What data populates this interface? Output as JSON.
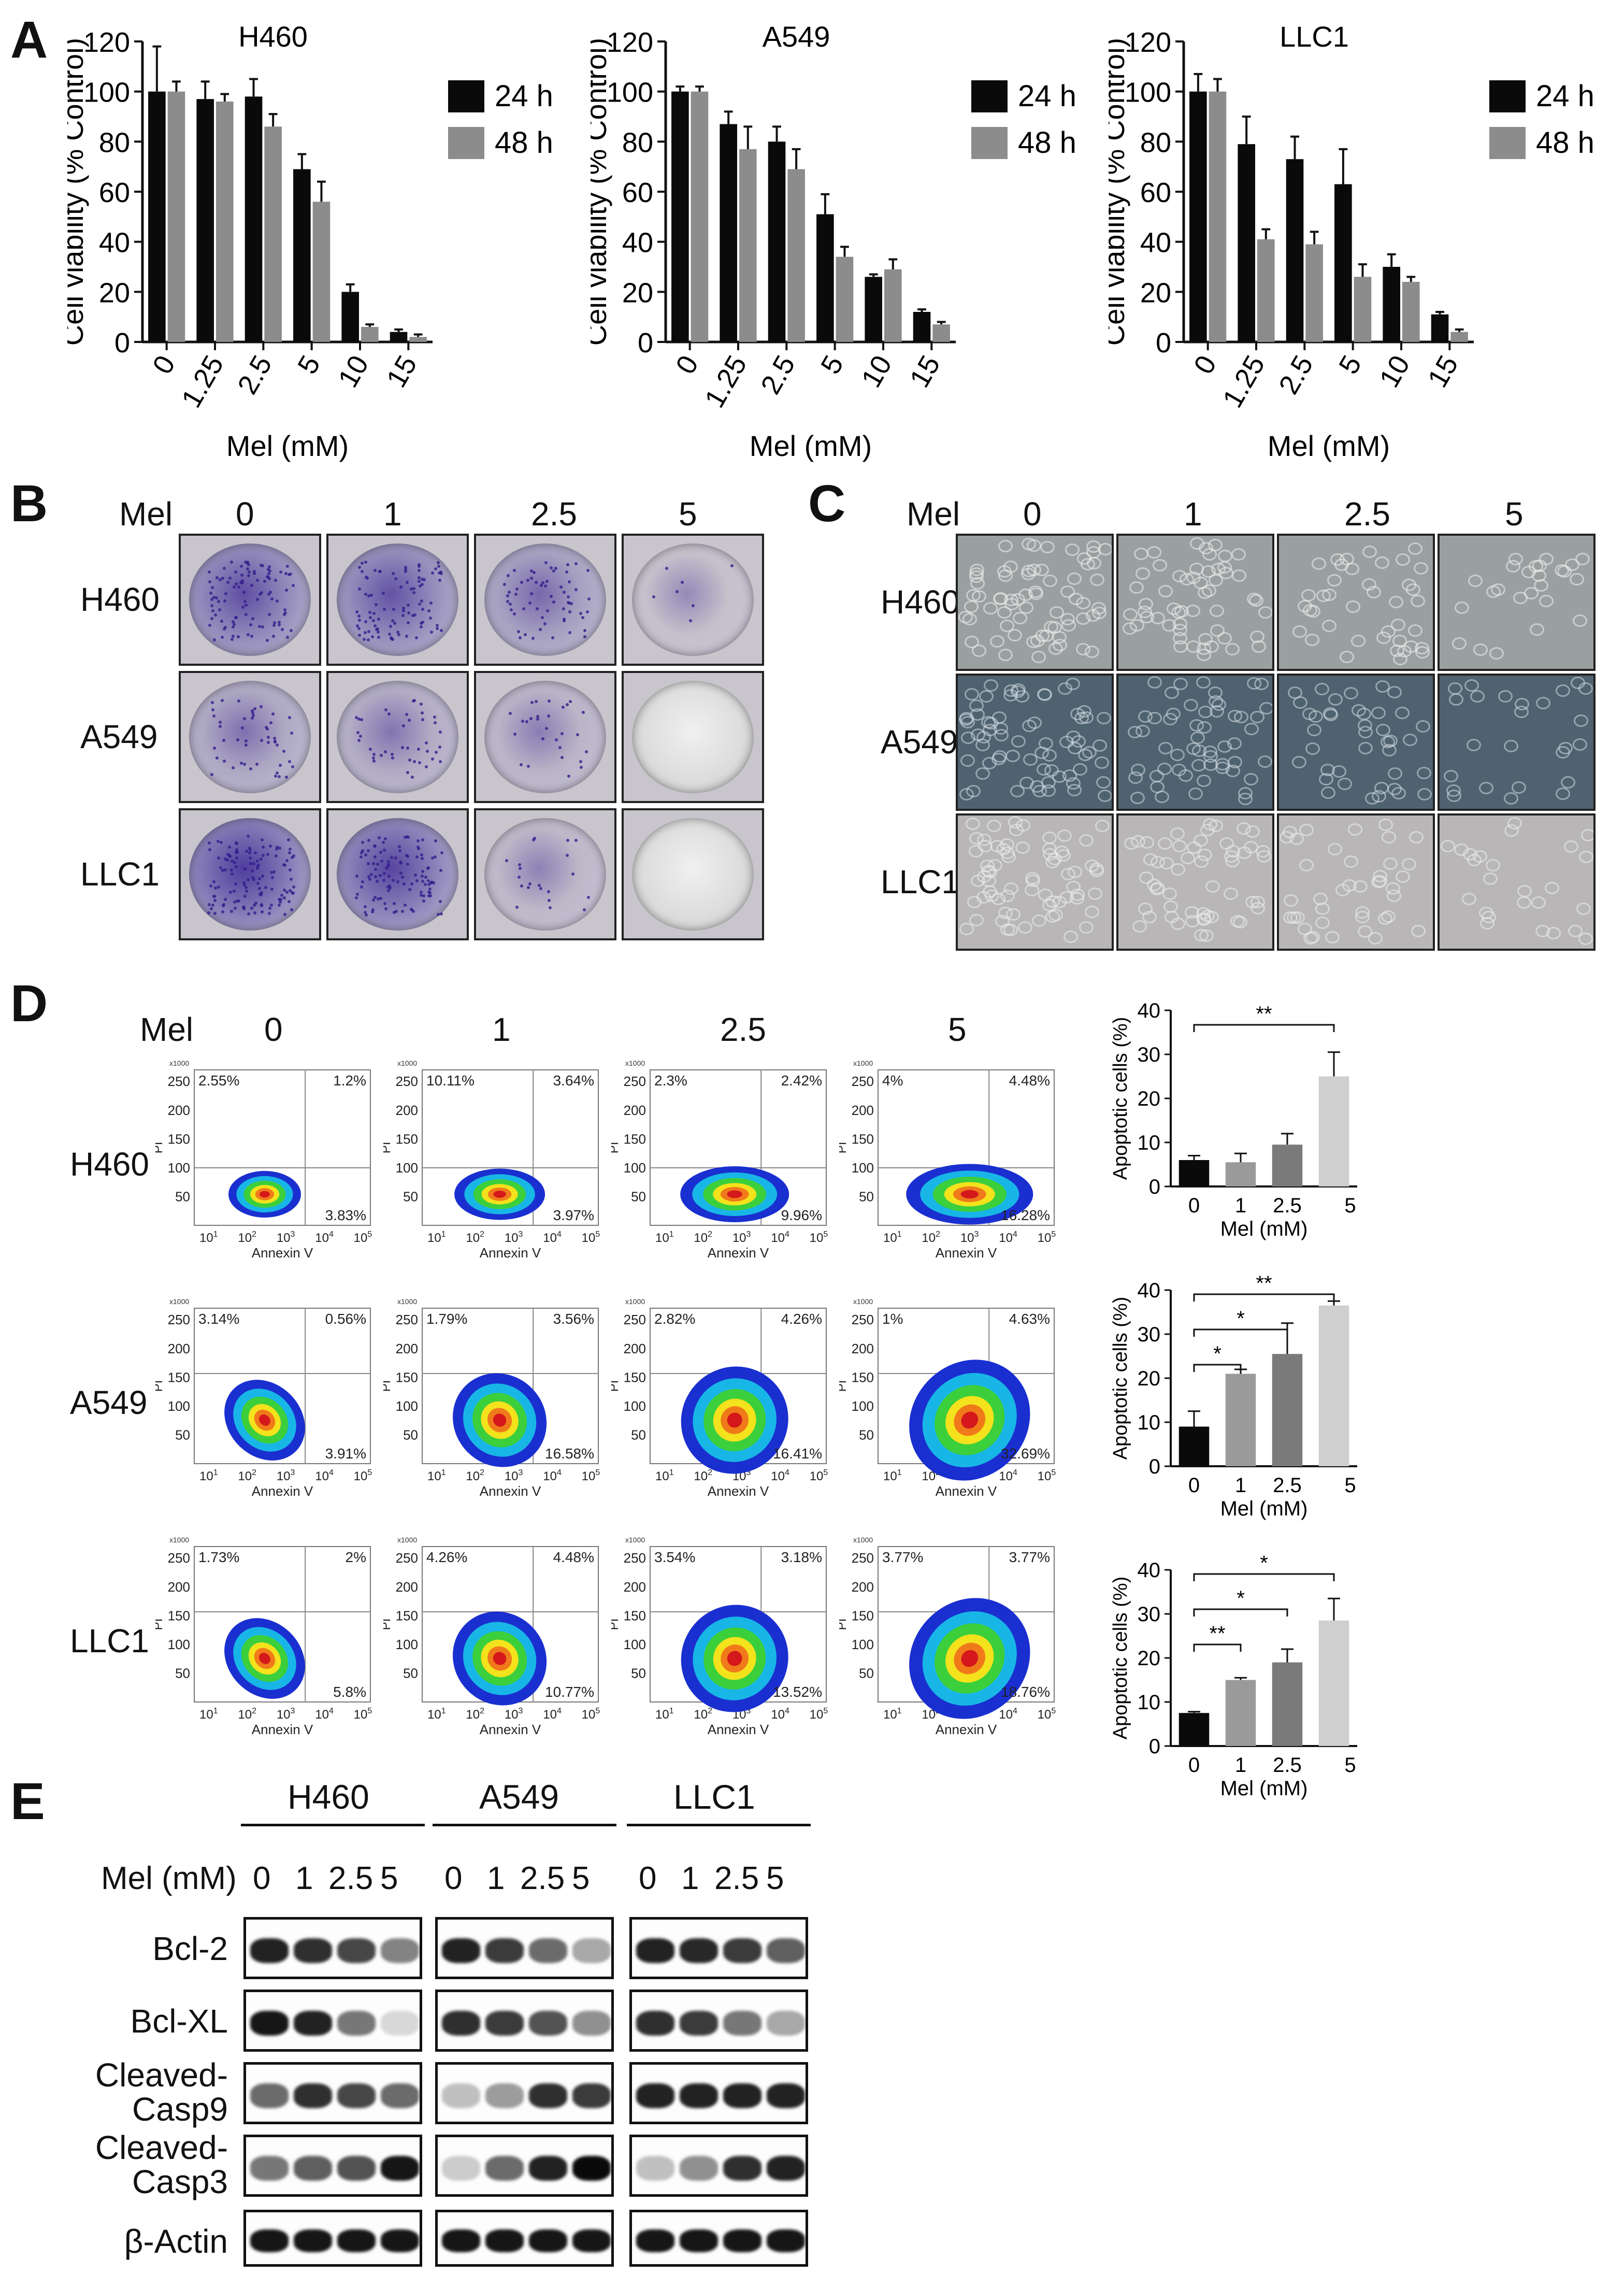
{
  "panel_letters": {
    "a": "A",
    "b": "B",
    "c": "C",
    "d": "D",
    "e": "E"
  },
  "chart_data": [
    {
      "id": "viability-h460",
      "type": "bar",
      "title": "H460",
      "ylabel": "Cell viability (% Control)",
      "xlabel": "Mel (mM)",
      "categories": [
        "0",
        "1.25",
        "2.5",
        "5",
        "10",
        "15"
      ],
      "ylim": [
        0,
        120
      ],
      "yticks": [
        0,
        20,
        40,
        60,
        80,
        100,
        120
      ],
      "series": [
        {
          "name": "24 h",
          "color": "#0a0a0a",
          "values": [
            100,
            97,
            98,
            69,
            20,
            4
          ],
          "errors": [
            18,
            7,
            7,
            6,
            3,
            1
          ]
        },
        {
          "name": "48 h",
          "color": "#8c8c8c",
          "values": [
            100,
            96,
            86,
            56,
            6,
            2
          ],
          "errors": [
            4,
            3,
            5,
            8,
            1,
            1
          ]
        }
      ]
    },
    {
      "id": "viability-a549",
      "type": "bar",
      "title": "A549",
      "ylabel": "Cell viability (% Control)",
      "xlabel": "Mel (mM)",
      "categories": [
        "0",
        "1.25",
        "2.5",
        "5",
        "10",
        "15"
      ],
      "ylim": [
        0,
        120
      ],
      "yticks": [
        0,
        20,
        40,
        60,
        80,
        100,
        120
      ],
      "series": [
        {
          "name": "24 h",
          "color": "#0a0a0a",
          "values": [
            100,
            87,
            80,
            51,
            26,
            12
          ],
          "errors": [
            2,
            5,
            6,
            8,
            1,
            1
          ]
        },
        {
          "name": "48 h",
          "color": "#8c8c8c",
          "values": [
            100,
            77,
            69,
            34,
            29,
            7
          ],
          "errors": [
            2,
            9,
            8,
            4,
            4,
            1
          ]
        }
      ]
    },
    {
      "id": "viability-llc1",
      "type": "bar",
      "title": "LLC1",
      "ylabel": "Cell viability (% Control)",
      "xlabel": "Mel (mM)",
      "categories": [
        "0",
        "1.25",
        "2.5",
        "5",
        "10",
        "15"
      ],
      "ylim": [
        0,
        120
      ],
      "yticks": [
        0,
        20,
        40,
        60,
        80,
        100,
        120
      ],
      "series": [
        {
          "name": "24 h",
          "color": "#0a0a0a",
          "values": [
            100,
            79,
            73,
            63,
            30,
            11
          ],
          "errors": [
            7,
            11,
            9,
            14,
            5,
            1
          ]
        },
        {
          "name": "48 h",
          "color": "#8c8c8c",
          "values": [
            100,
            41,
            39,
            26,
            24,
            4
          ],
          "errors": [
            5,
            4,
            5,
            5,
            2,
            1
          ]
        }
      ]
    },
    {
      "id": "apoptosis-h460",
      "type": "bar",
      "ylabel": "Apoptotic cells (%)",
      "xlabel": "Mel (mM)",
      "categories": [
        "0",
        "1",
        "2.5",
        "5"
      ],
      "ylim": [
        0,
        40
      ],
      "yticks": [
        0,
        10,
        20,
        30,
        40
      ],
      "series": [
        {
          "values": [
            6,
            5.5,
            9.5,
            25
          ],
          "errors": [
            1,
            2,
            2.5,
            5.5
          ],
          "colors": [
            "#0a0a0a",
            "#9a9a9a",
            "#7a7a7a",
            "#cfcfcf"
          ]
        }
      ],
      "significance": [
        {
          "from": 0,
          "to": 3,
          "label": "**"
        }
      ]
    },
    {
      "id": "apoptosis-a549",
      "type": "bar",
      "ylabel": "Apoptotic cells (%)",
      "xlabel": "Mel (mM)",
      "categories": [
        "0",
        "1",
        "2.5",
        "5"
      ],
      "ylim": [
        0,
        40
      ],
      "yticks": [
        0,
        10,
        20,
        30,
        40
      ],
      "series": [
        {
          "values": [
            9,
            21,
            25.5,
            36.5
          ],
          "errors": [
            3.5,
            1,
            7,
            1
          ],
          "colors": [
            "#0a0a0a",
            "#9a9a9a",
            "#7a7a7a",
            "#cfcfcf"
          ]
        }
      ],
      "significance": [
        {
          "from": 0,
          "to": 1,
          "label": "*"
        },
        {
          "from": 0,
          "to": 2,
          "label": "*"
        },
        {
          "from": 0,
          "to": 3,
          "label": "**"
        }
      ]
    },
    {
      "id": "apoptosis-llc1",
      "type": "bar",
      "ylabel": "Apoptotic cells (%)",
      "xlabel": "Mel (mM)",
      "categories": [
        "0",
        "1",
        "2.5",
        "5"
      ],
      "ylim": [
        0,
        40
      ],
      "yticks": [
        0,
        10,
        20,
        30,
        40
      ],
      "series": [
        {
          "values": [
            7.5,
            15,
            19,
            28.5
          ],
          "errors": [
            0.3,
            0.5,
            3,
            5
          ],
          "colors": [
            "#0a0a0a",
            "#9a9a9a",
            "#7a7a7a",
            "#cfcfcf"
          ]
        }
      ],
      "significance": [
        {
          "from": 0,
          "to": 1,
          "label": "**"
        },
        {
          "from": 0,
          "to": 2,
          "label": "*"
        },
        {
          "from": 0,
          "to": 3,
          "label": "*"
        }
      ]
    }
  ],
  "panel_b": {
    "mel_label": "Mel",
    "doses": [
      "0",
      "1",
      "2.5",
      "5"
    ],
    "rows": [
      "H460",
      "A549",
      "LLC1"
    ],
    "stain_color": "#5a4fa8",
    "density": [
      [
        0.75,
        0.7,
        0.45,
        0.05
      ],
      [
        0.35,
        0.3,
        0.2,
        0.0
      ],
      [
        0.95,
        0.85,
        0.15,
        0.0
      ]
    ]
  },
  "panel_c": {
    "mel_label": "Mel",
    "doses": [
      "0",
      "1",
      "2.5",
      "5"
    ],
    "rows": [
      "H460",
      "A549",
      "LLC1"
    ]
  },
  "panel_d": {
    "mel_label": "Mel",
    "doses": [
      "0",
      "1",
      "2.5",
      "5"
    ],
    "rows": [
      "H460",
      "A549",
      "LLC1"
    ],
    "x_axis_label": "Annexin V",
    "y_axis_label": "PI",
    "x_multiplier": "x1000",
    "y_ticks": [
      "50",
      "100",
      "150",
      "200",
      "250"
    ],
    "x_ticks": [
      {
        "b": "10",
        "e": "1"
      },
      {
        "b": "10",
        "e": "2"
      },
      {
        "b": "10",
        "e": "3"
      },
      {
        "b": "10",
        "e": "4"
      },
      {
        "b": "10",
        "e": "5"
      }
    ],
    "quadrants": [
      [
        [
          "2.55%",
          "1.2%",
          "3.83%"
        ],
        [
          "10.11%",
          "3.64%",
          "3.97%"
        ],
        [
          "2.3%",
          "2.42%",
          "9.96%"
        ],
        [
          "4%",
          "4.48%",
          "16.28%"
        ]
      ],
      [
        [
          "3.14%",
          "0.56%",
          "3.91%"
        ],
        [
          "1.79%",
          "3.56%",
          "16.58%"
        ],
        [
          "2.82%",
          "4.26%",
          "16.41%"
        ],
        [
          "1%",
          "4.63%",
          "32.69%"
        ]
      ],
      [
        [
          "1.73%",
          "2%",
          "5.8%"
        ],
        [
          "4.26%",
          "4.48%",
          "10.77%"
        ],
        [
          "3.54%",
          "3.18%",
          "13.52%"
        ],
        [
          "3.77%",
          "3.77%",
          "18.76%"
        ]
      ]
    ]
  },
  "panel_e": {
    "dose_label": "Mel (mM)",
    "groups": [
      "H460",
      "A549",
      "LLC1"
    ],
    "doses": [
      "0",
      "1",
      "2.5",
      "5"
    ],
    "proteins": [
      "Bcl-2",
      "Bcl-XL",
      "Cleaved-\nCasp9",
      "Cleaved-\nCasp3",
      "β-Actin"
    ],
    "protein_labels": [
      [
        "Bcl-2"
      ],
      [
        "Bcl-XL"
      ],
      [
        "Cleaved-",
        "Casp9"
      ],
      [
        "Cleaved-",
        "Casp3"
      ],
      [
        "β-Actin"
      ]
    ],
    "intensity": [
      [
        [
          0.9,
          0.85,
          0.75,
          0.5
        ],
        [
          0.9,
          0.8,
          0.6,
          0.35
        ],
        [
          0.9,
          0.88,
          0.8,
          0.65
        ]
      ],
      [
        [
          0.95,
          0.9,
          0.55,
          0.15
        ],
        [
          0.85,
          0.8,
          0.7,
          0.45
        ],
        [
          0.85,
          0.8,
          0.55,
          0.35
        ]
      ],
      [
        [
          0.6,
          0.85,
          0.75,
          0.6
        ],
        [
          0.25,
          0.4,
          0.85,
          0.8
        ],
        [
          0.9,
          0.9,
          0.9,
          0.9
        ]
      ],
      [
        [
          0.55,
          0.65,
          0.7,
          0.95
        ],
        [
          0.2,
          0.6,
          0.9,
          1.0
        ],
        [
          0.25,
          0.45,
          0.85,
          0.9
        ]
      ],
      [
        [
          0.95,
          0.95,
          0.95,
          0.95
        ],
        [
          0.95,
          0.95,
          0.95,
          0.95
        ],
        [
          0.95,
          0.95,
          0.95,
          0.95
        ]
      ]
    ]
  }
}
